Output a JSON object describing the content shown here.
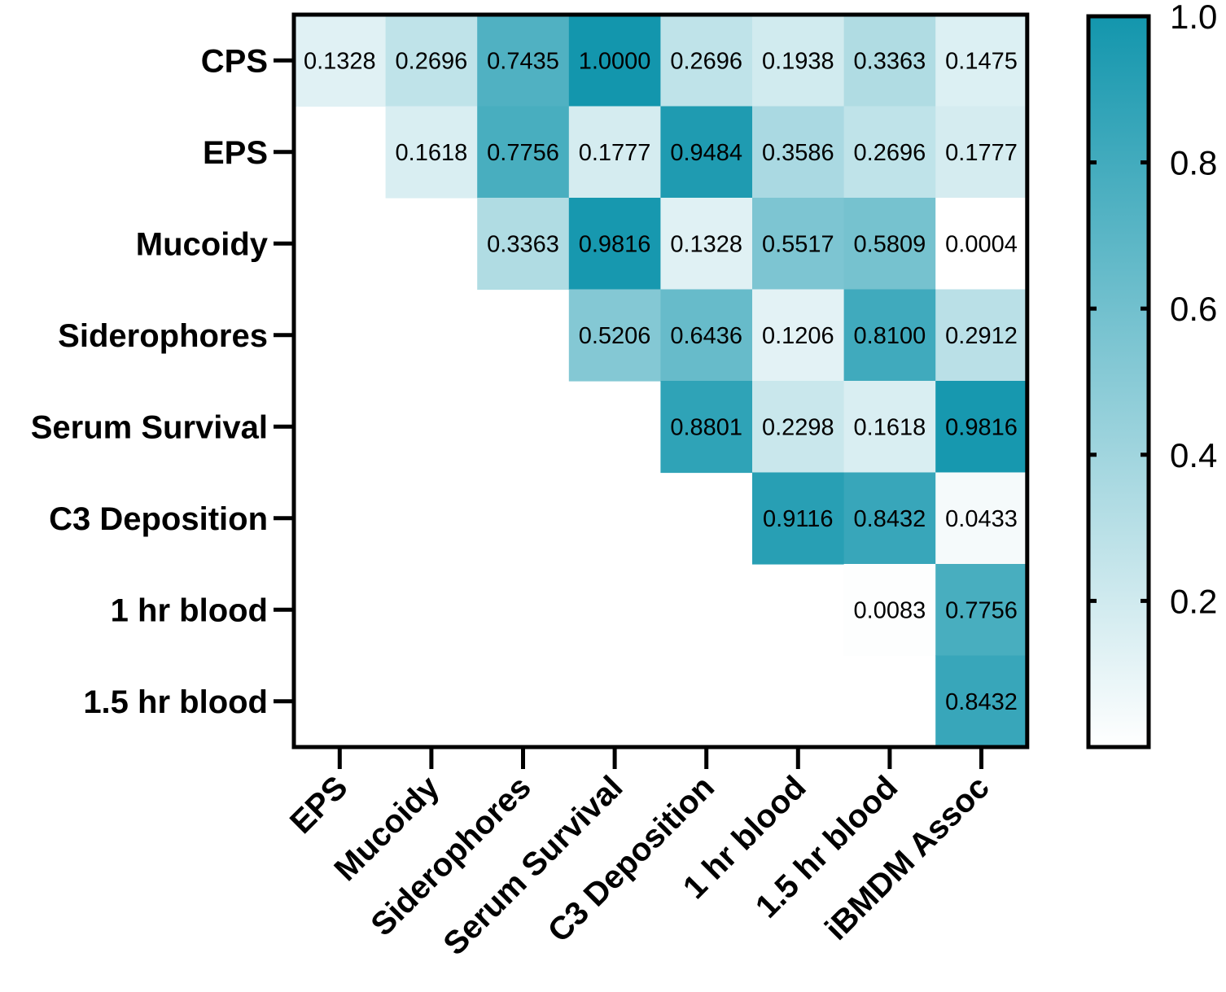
{
  "chart_data": {
    "type": "heatmap",
    "title": "",
    "xlabel": "",
    "ylabel": "",
    "rows": [
      "CPS",
      "EPS",
      "Mucoidy",
      "Siderophores",
      "Serum Survival",
      "C3 Deposition",
      "1 hr blood",
      "1.5 hr blood"
    ],
    "columns": [
      "EPS",
      "Mucoidy",
      "Siderophores",
      "Serum Survival",
      "C3 Deposition",
      "1 hr blood",
      "1.5 hr blood",
      "iBMDM Assoc"
    ],
    "values": [
      [
        "0.1328",
        "0.2696",
        "0.7435",
        "1.0000",
        "0.2696",
        "0.1938",
        "0.3363",
        "0.1475"
      ],
      [
        null,
        "0.1618",
        "0.7756",
        "0.1777",
        "0.9484",
        "0.3586",
        "0.2696",
        "0.1777"
      ],
      [
        null,
        null,
        "0.3363",
        "0.9816",
        "0.1328",
        "0.5517",
        "0.5809",
        "0.0004"
      ],
      [
        null,
        null,
        null,
        "0.5206",
        "0.6436",
        "0.1206",
        "0.8100",
        "0.2912"
      ],
      [
        null,
        null,
        null,
        null,
        "0.8801",
        "0.2298",
        "0.1618",
        "0.9816"
      ],
      [
        null,
        null,
        null,
        null,
        null,
        "0.9116",
        "0.8432",
        "0.0433"
      ],
      [
        null,
        null,
        null,
        null,
        null,
        null,
        "0.0083",
        "0.7756"
      ],
      [
        null,
        null,
        null,
        null,
        null,
        null,
        null,
        "0.8432"
      ]
    ],
    "colorbar": {
      "range": [
        0,
        1
      ],
      "ticks": [
        "0.2",
        "0.4",
        "0.6",
        "0.8",
        "1.0"
      ],
      "low_color": "#ffffff",
      "high_color": "#1396ad",
      "placement": "right"
    },
    "grid": false
  }
}
